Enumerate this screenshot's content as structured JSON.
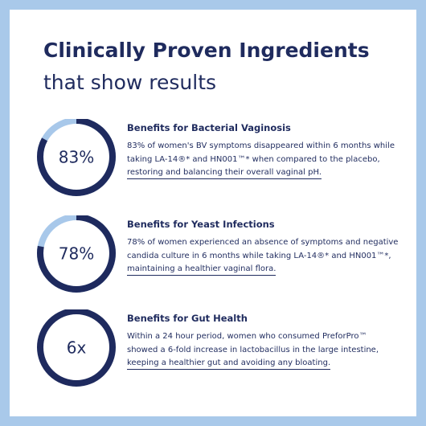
{
  "title": "Clinically Proven Ingredients",
  "subtitle": "that show results",
  "items": [
    {
      "value": 83,
      "label": "83%",
      "heading": "Benefits for Bacterial Vaginosis",
      "lines": [
        "83% of women's BV symptoms disappeared within 6 months while",
        "taking LA-14®* and HN001™* when compared to the placebo,",
        "restoring and balancing their overall vaginal pH."
      ]
    },
    {
      "value": 78,
      "label": "78%",
      "heading": "Benefits for Yeast Infections",
      "lines": [
        "78% of women experienced an absence of symptoms and negative",
        "candida culture in 6 months while taking LA-14®* and HN001™*,",
        "maintaining a healthier vaginal flora."
      ]
    },
    {
      "label": "6x",
      "heading": "Benefits for Gut Health",
      "lines": [
        "Within a 24 hour period, women who consumed PreforPro™",
        "showed a 6-fold increase in lactobacillus in the large intestine,",
        "keeping a healthier gut and avoiding any bloating."
      ]
    }
  ]
}
